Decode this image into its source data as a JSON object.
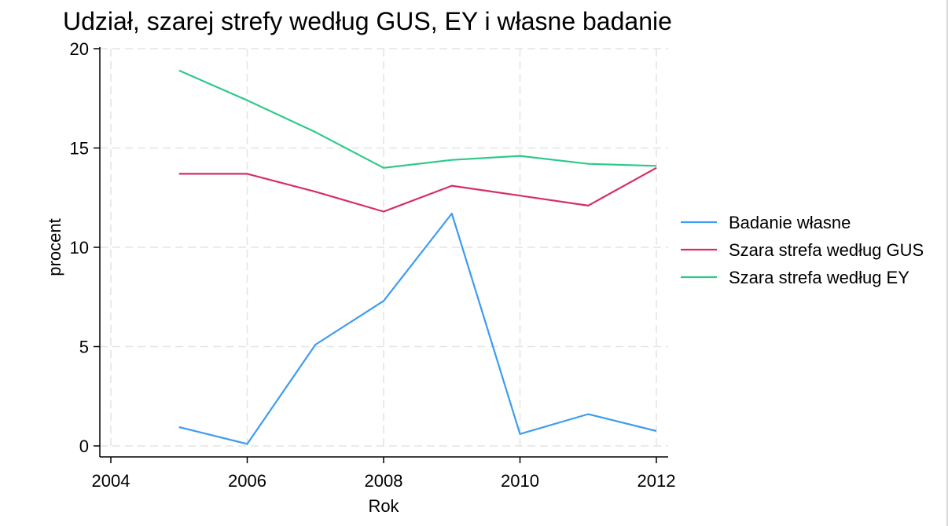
{
  "chart_data": {
    "type": "line",
    "title": "Udział, szarej strefy według GUS, EY i własne badanie",
    "xlabel": "Rok",
    "ylabel": "procent",
    "xlim": [
      2004,
      2012
    ],
    "ylim": [
      0,
      20
    ],
    "xticks": [
      "2004",
      "2006",
      "2008",
      "2010",
      "2012"
    ],
    "yticks": [
      "0",
      "5",
      "10",
      "15",
      "20"
    ],
    "grid": true,
    "legend_position": "right",
    "x": [
      2005,
      2006,
      2007,
      2008,
      2009,
      2010,
      2011,
      2012
    ],
    "series": [
      {
        "name": "Badanie własne",
        "color": "#3d9cf0",
        "values": [
          0.95,
          0.1,
          5.1,
          7.3,
          11.7,
          0.6,
          1.6,
          0.75
        ]
      },
      {
        "name": "Szara strefa według GUS",
        "color": "#d62e64",
        "values": [
          13.7,
          13.7,
          12.8,
          11.8,
          13.1,
          12.6,
          12.1,
          14.0
        ]
      },
      {
        "name": "Szara strefa według EY",
        "color": "#2ec98a",
        "values": [
          18.9,
          17.4,
          15.8,
          14.0,
          14.4,
          14.6,
          14.2,
          14.1
        ]
      }
    ]
  }
}
